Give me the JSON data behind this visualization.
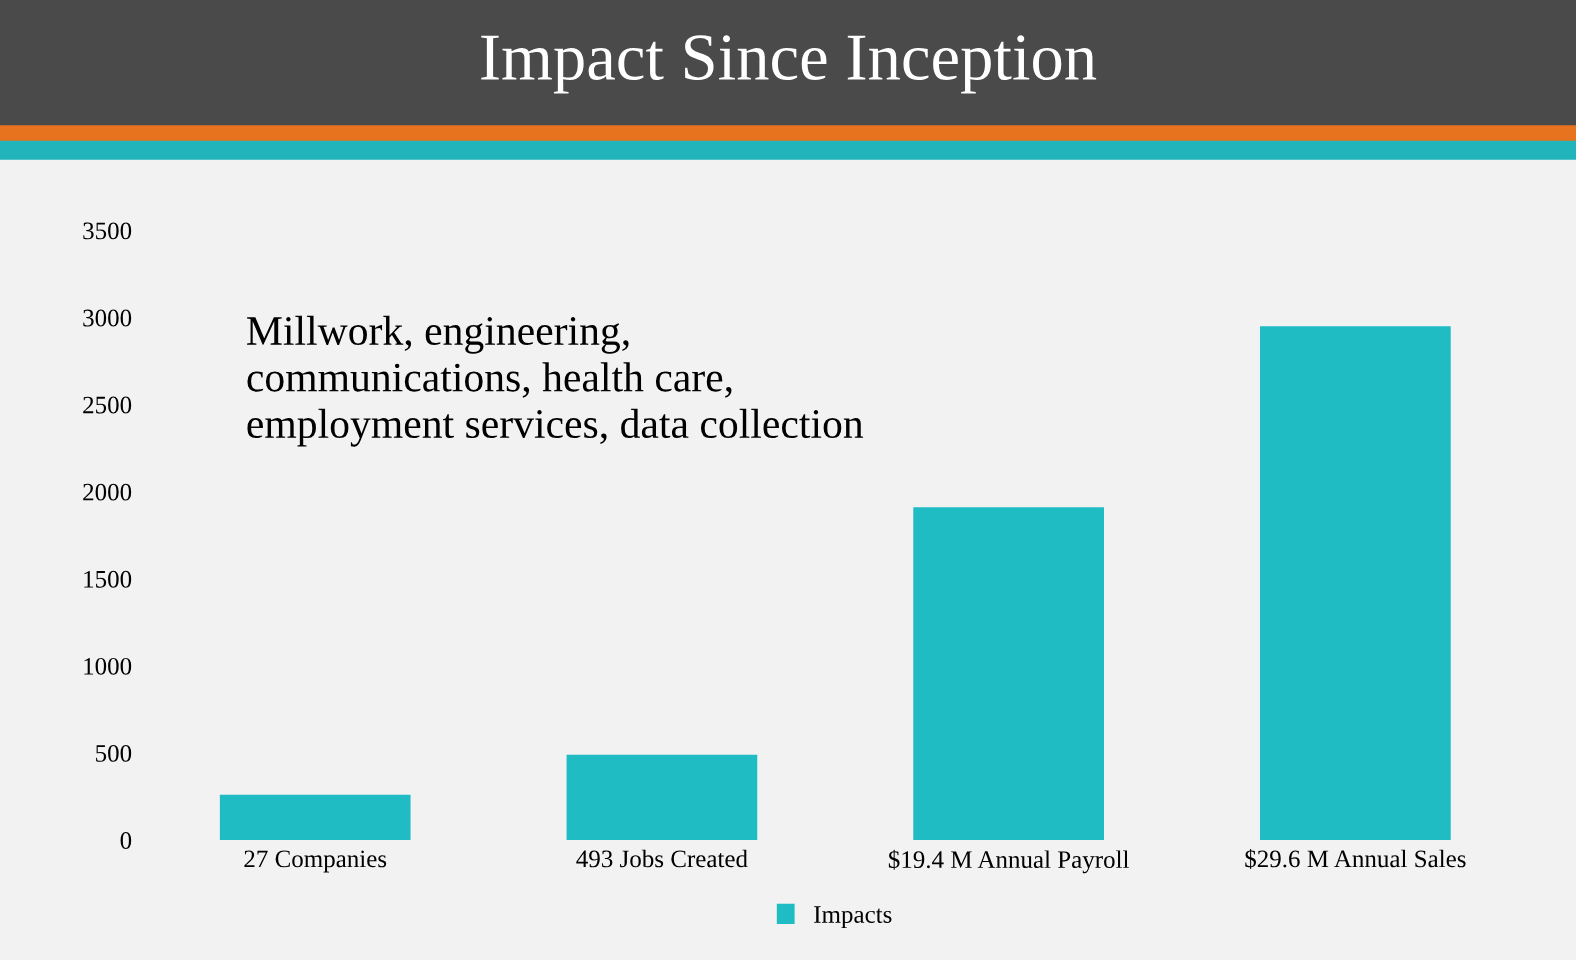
{
  "chart_data": {
    "type": "bar",
    "title": "Impact Since Inception",
    "categories": [
      "27 Companies",
      "493 Jobs Created",
      "$19.4 M Annual Payroll",
      "$29.6 M Annual Sales"
    ],
    "series": [
      {
        "name": "Impacts",
        "color": "#1fbcc4",
        "values": [
          260,
          490,
          1910,
          2950
        ]
      }
    ],
    "ylim": [
      0,
      3500
    ],
    "yticks": [
      0,
      500,
      1000,
      1500,
      2000,
      2500,
      3000,
      3500
    ],
    "annotations": [
      "Millwork, engineering,\ncommunications, health care,\nemployment services, data collection"
    ],
    "legend": "bottom",
    "grid": false
  }
}
